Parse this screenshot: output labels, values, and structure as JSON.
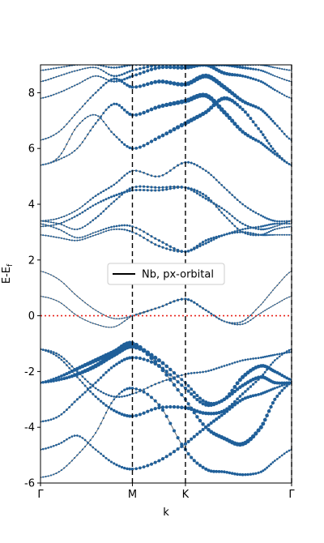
{
  "chart_data": {
    "type": "line",
    "title": "",
    "xlabel": "k",
    "ylabel": "E-E$_f$",
    "ylabel_main": "E-E",
    "ylabel_sub": "f",
    "ylim": [
      -6,
      9
    ],
    "yticks": [
      -6,
      -4,
      -2,
      0,
      2,
      4,
      6,
      8
    ],
    "xticks": [
      {
        "label": "Γ",
        "k": 0.0
      },
      {
        "label": "M",
        "k": 1.0
      },
      {
        "label": "K",
        "k": 1.577
      },
      {
        "label": "Γ",
        "k": 2.732
      }
    ],
    "xlim": [
      0,
      2.732
    ],
    "fermi_level": 0,
    "legend": {
      "label": "Nb, px-orbital",
      "placement": "center-left"
    },
    "colors": {
      "bands": "#606060",
      "projection": "#1f5f99",
      "fermi": "#e8221a",
      "kpath": "#000000"
    },
    "series": [
      {
        "values": [
          -5.8,
          -5.6,
          -5.0,
          -4.2,
          -3.0,
          -2.6,
          -3.2,
          -4.8,
          -5.5,
          -5.6,
          -5.7,
          -5.6,
          -5.2,
          -4.8
        ]
      },
      {
        "values": [
          -4.8,
          -4.6,
          -4.3,
          -4.8,
          -5.3,
          -5.5,
          -5.2,
          -4.6,
          -4.0,
          -3.5,
          -3.0,
          -2.8,
          -2.6,
          -2.4
        ]
      },
      {
        "values": [
          -3.8,
          -3.6,
          -3.0,
          -2.4,
          -1.8,
          -1.5,
          -1.8,
          -2.6,
          -3.2,
          -3.0,
          -2.5,
          -2.2,
          -2.4,
          -2.4
        ]
      },
      {
        "values": [
          -2.4,
          -2.3,
          -2.1,
          -1.8,
          -1.4,
          -1.1,
          -1.6,
          -2.4,
          -3.1,
          -3.0,
          -2.2,
          -1.8,
          -2.0,
          -2.3
        ]
      },
      {
        "values": [
          -2.4,
          -2.2,
          -1.9,
          -1.6,
          -1.3,
          -1.0,
          -1.8,
          -3.0,
          -4.0,
          -4.4,
          -4.6,
          -4.0,
          -3.0,
          -2.4
        ]
      },
      {
        "values": [
          -1.2,
          -1.4,
          -2.0,
          -2.6,
          -2.9,
          -2.8,
          -2.4,
          -2.1,
          -2.0,
          -1.8,
          -1.6,
          -1.5,
          -1.4,
          -1.3
        ]
      },
      {
        "values": [
          -1.2,
          -1.5,
          -2.2,
          -2.9,
          -3.4,
          -3.6,
          -3.3,
          -3.3,
          -3.5,
          -3.4,
          -2.8,
          -2.2,
          -1.6,
          -1.2
        ]
      },
      {
        "values": [
          0.7,
          0.5,
          0.0,
          -0.3,
          -0.4,
          0.0,
          0.3,
          0.6,
          0.2,
          -0.2,
          -0.3,
          0.1,
          0.4,
          0.7
        ]
      },
      {
        "values": [
          1.6,
          1.3,
          0.7,
          0.2,
          -0.1,
          0.0,
          0.3,
          0.6,
          0.2,
          -0.2,
          -0.2,
          0.4,
          1.0,
          1.6
        ]
      },
      {
        "values": [
          2.9,
          2.8,
          2.7,
          2.9,
          3.1,
          3.0,
          2.5,
          2.3,
          2.6,
          2.9,
          3.0,
          2.9,
          2.9,
          2.9
        ]
      },
      {
        "values": [
          3.3,
          3.1,
          2.8,
          3.0,
          3.2,
          3.2,
          2.7,
          2.3,
          2.7,
          2.9,
          3.1,
          3.2,
          3.3,
          3.3
        ]
      },
      {
        "values": [
          3.2,
          3.3,
          3.6,
          4.0,
          4.3,
          4.5,
          4.5,
          4.6,
          4.3,
          3.6,
          3.0,
          2.9,
          3.1,
          3.2
        ]
      },
      {
        "values": [
          3.4,
          3.3,
          3.1,
          3.5,
          4.1,
          4.6,
          4.6,
          4.6,
          4.2,
          3.8,
          3.3,
          3.1,
          3.2,
          3.4
        ]
      },
      {
        "values": [
          3.4,
          3.5,
          3.8,
          4.3,
          4.7,
          5.2,
          5.0,
          5.5,
          5.2,
          4.6,
          4.0,
          3.6,
          3.4,
          3.4
        ]
      },
      {
        "values": [
          5.4,
          5.7,
          6.8,
          7.2,
          6.5,
          6.0,
          6.4,
          6.9,
          7.3,
          7.8,
          7.4,
          6.6,
          5.9,
          5.4
        ]
      },
      {
        "values": [
          5.4,
          5.6,
          6.0,
          6.9,
          7.6,
          7.2,
          7.5,
          7.7,
          7.9,
          7.3,
          6.6,
          6.2,
          5.8,
          5.4
        ]
      },
      {
        "values": [
          6.3,
          6.6,
          7.3,
          8.0,
          8.5,
          8.2,
          8.4,
          8.3,
          8.6,
          8.2,
          7.7,
          7.4,
          6.9,
          6.3
        ]
      },
      {
        "values": [
          7.8,
          8.0,
          8.3,
          8.6,
          8.4,
          8.6,
          8.9,
          8.9,
          9.0,
          8.7,
          8.6,
          8.4,
          8.1,
          7.8
        ]
      },
      {
        "values": [
          8.4,
          8.6,
          8.8,
          8.9,
          8.6,
          8.8,
          9.0,
          9.0,
          9.0,
          9.0,
          8.9,
          8.8,
          8.6,
          8.4
        ]
      },
      {
        "values": [
          8.8,
          8.9,
          9.0,
          9.0,
          8.9,
          9.0,
          9.0,
          9.0,
          9.0,
          9.0,
          9.0,
          9.0,
          8.9,
          8.8
        ]
      }
    ],
    "projection_weights": [
      [
        0.2,
        0.2,
        0.2,
        0.2,
        0.3,
        0.5,
        0.6,
        0.6,
        0.6,
        0.5,
        0.5,
        0.4,
        0.3,
        0.3
      ],
      [
        0.3,
        0.3,
        0.3,
        0.3,
        0.4,
        0.5,
        0.6,
        0.6,
        0.6,
        0.6,
        0.6,
        0.5,
        0.4,
        0.3
      ],
      [
        0.3,
        0.3,
        0.4,
        0.4,
        0.5,
        0.6,
        0.6,
        0.6,
        0.6,
        0.6,
        0.7,
        0.7,
        0.6,
        0.5
      ],
      [
        0.4,
        0.5,
        0.7,
        0.9,
        1.0,
        1.0,
        0.8,
        0.5,
        0.6,
        0.7,
        0.8,
        0.7,
        0.6,
        0.5
      ],
      [
        0.4,
        0.5,
        0.7,
        0.9,
        1.0,
        1.0,
        0.8,
        0.6,
        0.7,
        0.8,
        0.9,
        0.8,
        0.6,
        0.4
      ],
      [
        0.3,
        0.3,
        0.3,
        0.3,
        0.3,
        0.3,
        0.3,
        0.3,
        0.3,
        0.3,
        0.3,
        0.3,
        0.3,
        0.3
      ],
      [
        0.3,
        0.3,
        0.3,
        0.4,
        0.5,
        0.6,
        0.6,
        0.7,
        0.7,
        0.6,
        0.5,
        0.4,
        0.3,
        0.3
      ],
      [
        0.1,
        0.1,
        0.1,
        0.1,
        0.1,
        0.2,
        0.3,
        0.4,
        0.3,
        0.2,
        0.2,
        0.1,
        0.1,
        0.1
      ],
      [
        0.1,
        0.1,
        0.1,
        0.1,
        0.1,
        0.2,
        0.3,
        0.4,
        0.3,
        0.2,
        0.2,
        0.1,
        0.1,
        0.1
      ],
      [
        0.2,
        0.2,
        0.2,
        0.2,
        0.2,
        0.3,
        0.4,
        0.4,
        0.4,
        0.3,
        0.3,
        0.3,
        0.2,
        0.2
      ],
      [
        0.2,
        0.2,
        0.2,
        0.2,
        0.3,
        0.3,
        0.4,
        0.5,
        0.4,
        0.4,
        0.3,
        0.3,
        0.3,
        0.2
      ],
      [
        0.2,
        0.2,
        0.3,
        0.3,
        0.4,
        0.4,
        0.4,
        0.4,
        0.4,
        0.3,
        0.3,
        0.3,
        0.2,
        0.2
      ],
      [
        0.2,
        0.2,
        0.2,
        0.3,
        0.3,
        0.4,
        0.4,
        0.4,
        0.4,
        0.3,
        0.3,
        0.3,
        0.2,
        0.2
      ],
      [
        0.2,
        0.2,
        0.2,
        0.3,
        0.3,
        0.3,
        0.3,
        0.4,
        0.3,
        0.3,
        0.3,
        0.3,
        0.3,
        0.2
      ],
      [
        0.2,
        0.2,
        0.2,
        0.2,
        0.3,
        0.5,
        0.7,
        0.9,
        0.8,
        0.8,
        0.6,
        0.5,
        0.4,
        0.3
      ],
      [
        0.2,
        0.2,
        0.2,
        0.3,
        0.4,
        0.6,
        0.8,
        1.0,
        1.0,
        0.9,
        0.7,
        0.5,
        0.4,
        0.3
      ],
      [
        0.2,
        0.2,
        0.2,
        0.3,
        0.4,
        0.6,
        0.8,
        0.9,
        1.0,
        0.9,
        0.7,
        0.5,
        0.4,
        0.3
      ],
      [
        0.2,
        0.2,
        0.2,
        0.2,
        0.3,
        0.5,
        0.7,
        0.8,
        0.8,
        0.7,
        0.5,
        0.4,
        0.3,
        0.2
      ],
      [
        0.2,
        0.2,
        0.2,
        0.2,
        0.3,
        0.4,
        0.6,
        0.7,
        0.7,
        0.6,
        0.5,
        0.3,
        0.2,
        0.2
      ],
      [
        0.2,
        0.2,
        0.2,
        0.2,
        0.3,
        0.4,
        0.5,
        0.6,
        0.6,
        0.5,
        0.4,
        0.3,
        0.2,
        0.2
      ]
    ],
    "k_points": [
      0.0,
      0.2,
      0.4,
      0.6,
      0.8,
      1.0,
      1.29,
      1.577,
      1.8,
      2.0,
      2.2,
      2.4,
      2.55,
      2.732
    ]
  }
}
